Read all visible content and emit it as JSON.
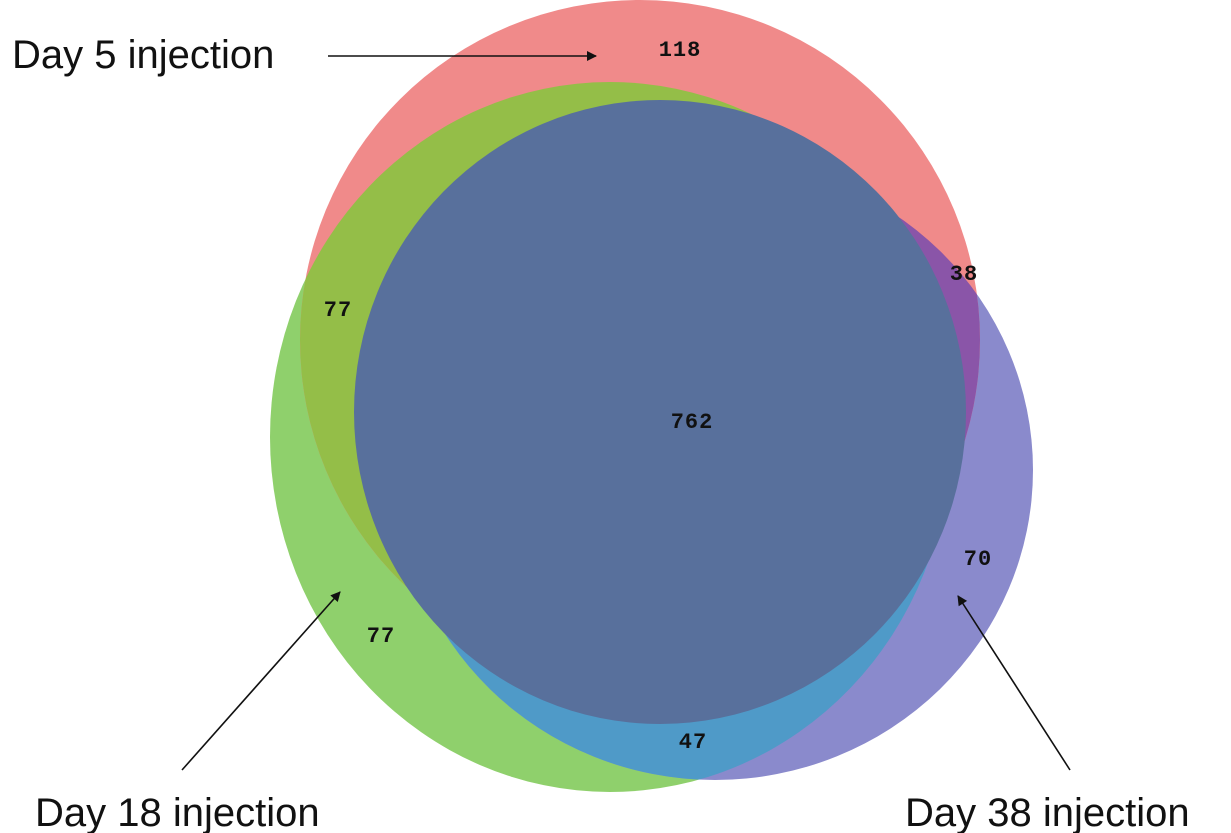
{
  "sets": [
    {
      "id": "day5",
      "label": "Day 5 injection",
      "color": "#f08a8a"
    },
    {
      "id": "day18",
      "label": "Day 18 injection",
      "color": "#8fd06c"
    },
    {
      "id": "day38",
      "label": "Day 38 injection",
      "color": "#8a8acc"
    }
  ],
  "regions": [
    {
      "id": "only-day5",
      "sets": [
        "day5"
      ],
      "count": "118"
    },
    {
      "id": "day5-day18",
      "sets": [
        "day5",
        "day18"
      ],
      "count": "77"
    },
    {
      "id": "day5-day38",
      "sets": [
        "day5",
        "day38"
      ],
      "count": "38"
    },
    {
      "id": "all-three",
      "sets": [
        "day5",
        "day18",
        "day38"
      ],
      "count": "762"
    },
    {
      "id": "only-day18",
      "sets": [
        "day18"
      ],
      "count": "77"
    },
    {
      "id": "only-day38",
      "sets": [
        "day38"
      ],
      "count": "70"
    },
    {
      "id": "day18-day38",
      "sets": [
        "day18",
        "day38"
      ],
      "count": "47"
    }
  ],
  "colors": {
    "overlap_day5_day18": "#94be48",
    "overlap_day5_day38": "#8a55a8",
    "overlap_day18_day38": "#4f9ac8",
    "overlap_all": "#58709c"
  }
}
